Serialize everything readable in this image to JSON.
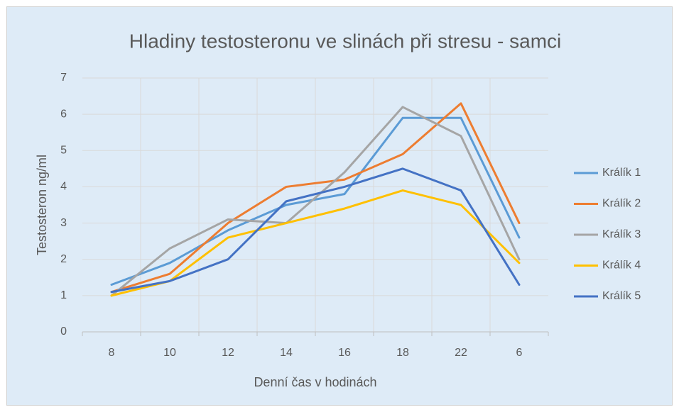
{
  "chart_data": {
    "type": "line",
    "title": "Hladiny testosteronu ve slinách při stresu - samci",
    "x_label": "Denní čas v hodinách",
    "y_label": "Testosteron ng/ml",
    "categories": [
      "8",
      "10",
      "12",
      "14",
      "16",
      "18",
      "22",
      "6"
    ],
    "series": [
      {
        "name": "Králík 1",
        "color": "#5b9bd5",
        "values": [
          1.3,
          1.9,
          2.8,
          3.5,
          3.8,
          5.9,
          5.9,
          2.6
        ]
      },
      {
        "name": "Králík 2",
        "color": "#ed7d31",
        "values": [
          1.1,
          1.6,
          3.0,
          4.0,
          4.2,
          4.9,
          6.3,
          3.0
        ]
      },
      {
        "name": "Králík 3",
        "color": "#a5a5a5",
        "values": [
          1.0,
          2.3,
          3.1,
          3.0,
          4.4,
          6.2,
          5.4,
          2.0
        ]
      },
      {
        "name": "Králík 4",
        "color": "#ffc000",
        "values": [
          1.0,
          1.4,
          2.6,
          3.0,
          3.4,
          3.9,
          3.5,
          1.9
        ]
      },
      {
        "name": "Králík 5",
        "color": "#4472c4",
        "values": [
          1.1,
          1.4,
          2.0,
          3.6,
          4.0,
          4.5,
          3.9,
          1.3
        ]
      }
    ],
    "ylim": [
      0,
      7
    ],
    "yticks": [
      0,
      1,
      2,
      3,
      4,
      5,
      6,
      7
    ],
    "grid": true,
    "legend": "right"
  }
}
